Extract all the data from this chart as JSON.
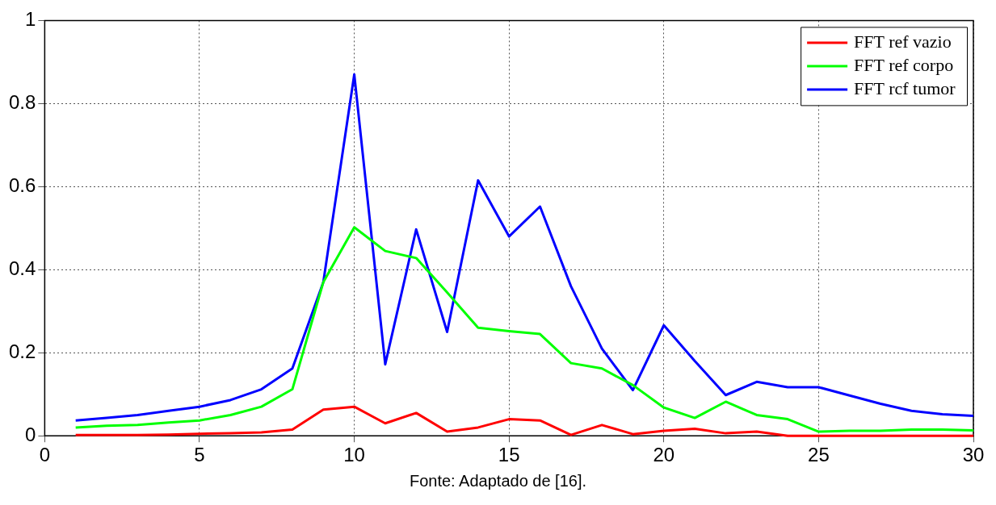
{
  "chart_data": {
    "type": "line",
    "x": [
      1,
      2,
      3,
      4,
      5,
      6,
      7,
      8,
      9,
      10,
      11,
      12,
      13,
      14,
      15,
      16,
      17,
      18,
      19,
      20,
      21,
      22,
      23,
      24,
      25,
      26,
      27,
      28,
      29,
      30
    ],
    "series": [
      {
        "name": "FFT ref vazio",
        "color": "#ff0000",
        "values": [
          0.002,
          0.002,
          0.002,
          0.003,
          0.005,
          0.006,
          0.008,
          0.015,
          0.063,
          0.07,
          0.03,
          0.055,
          0.01,
          0.02,
          0.04,
          0.037,
          0.002,
          0.026,
          0.004,
          0.012,
          0.017,
          0.006,
          0.01,
          0,
          0,
          0,
          0,
          0,
          0,
          0
        ]
      },
      {
        "name": "FFT ref corpo",
        "color": "#00ff00",
        "values": [
          0.02,
          0.024,
          0.026,
          0.032,
          0.037,
          0.05,
          0.07,
          0.112,
          0.37,
          0.502,
          0.445,
          0.428,
          0.345,
          0.26,
          0.252,
          0.245,
          0.175,
          0.162,
          0.122,
          0.068,
          0.043,
          0.082,
          0.05,
          0.04,
          0.01,
          0.012,
          0.012,
          0.015,
          0.015,
          0.013
        ]
      },
      {
        "name": "FFT rcf tumor",
        "color": "#0000ff",
        "values": [
          0.037,
          0.043,
          0.05,
          0.06,
          0.07,
          0.086,
          0.112,
          0.162,
          0.37,
          0.87,
          0.172,
          0.497,
          0.25,
          0.615,
          0.48,
          0.552,
          0.36,
          0.21,
          0.11,
          0.266,
          0.18,
          0.098,
          0.13,
          0.117,
          0.117,
          0.097,
          0.077,
          0.06,
          0.052,
          0.048
        ]
      }
    ],
    "xlim": [
      0,
      30
    ],
    "xticks": [
      0,
      5,
      10,
      15,
      20,
      25,
      30
    ],
    "ylim": [
      0,
      1
    ],
    "yticks": [
      0,
      0.2,
      0.4,
      0.6,
      0.8,
      1
    ],
    "grid": true,
    "legend": "top right",
    "marker": "none",
    "line_style": "solid",
    "annotations": [
      "Fonte: Adaptado de [16]."
    ]
  }
}
